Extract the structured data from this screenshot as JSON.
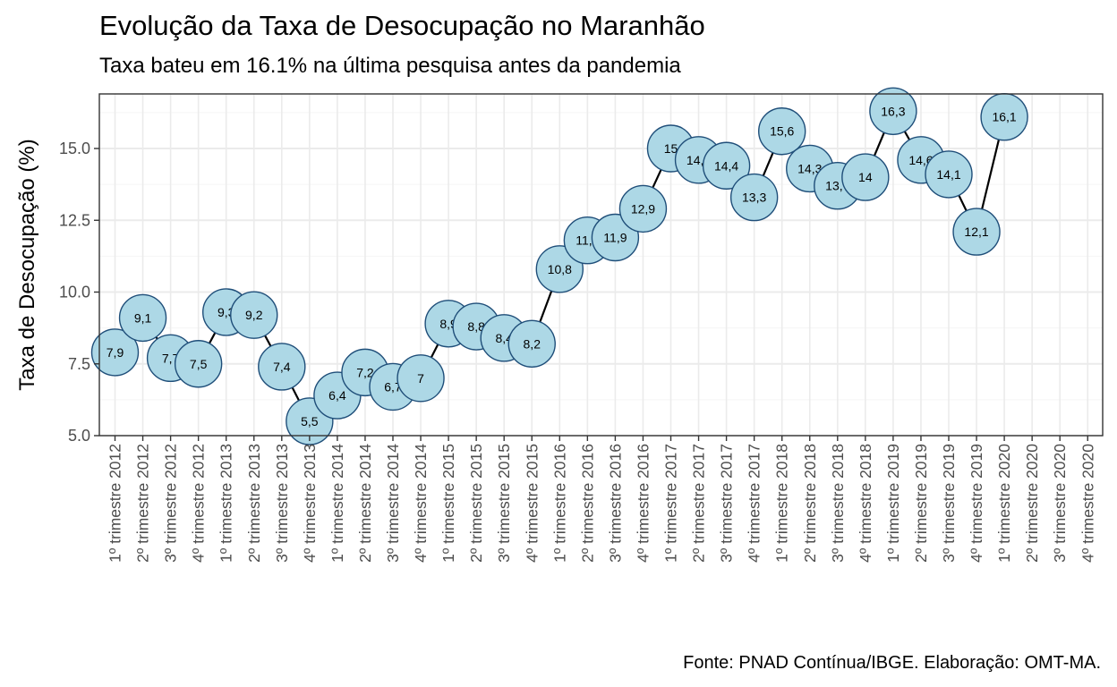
{
  "chart_data": {
    "type": "line",
    "title": "Evolução da Taxa de Desocupação no Maranhão",
    "subtitle": "Taxa bateu em 16.1% na última pesquisa antes da pandemia",
    "caption": "Fonte: PNAD Contínua/IBGE. Elaboração: OMT-MA.",
    "xlabel": "",
    "ylabel": "Taxa de Desocupação (%)",
    "ylim": [
      5.0,
      17.0
    ],
    "yticks": [
      "5.0",
      "7.5",
      "10.0",
      "12.5",
      "15.0"
    ],
    "categories": [
      "1º trimestre 2012",
      "2º trimestre 2012",
      "3º trimestre 2012",
      "4º trimestre 2012",
      "1º trimestre 2013",
      "2º trimestre 2013",
      "3º trimestre 2013",
      "4º trimestre 2013",
      "1º trimestre 2014",
      "2º trimestre 2014",
      "3º trimestre 2014",
      "4º trimestre 2014",
      "1º trimestre 2015",
      "2º trimestre 2015",
      "3º trimestre 2015",
      "4º trimestre 2015",
      "1º trimestre 2016",
      "2º trimestre 2016",
      "3º trimestre 2016",
      "4º trimestre 2016",
      "1º trimestre 2017",
      "2º trimestre 2017",
      "3º trimestre 2017",
      "4º trimestre 2017",
      "1º trimestre 2018",
      "2º trimestre 2018",
      "3º trimestre 2018",
      "4º trimestre 2018",
      "1º trimestre 2019",
      "2º trimestre 2019",
      "3º trimestre 2019",
      "4º trimestre 2019",
      "1º trimestre 2020",
      "2º trimestre 2020",
      "3º trimestre 2020",
      "4º trimestre 2020"
    ],
    "values": [
      7.9,
      9.1,
      7.7,
      7.5,
      9.3,
      9.2,
      7.4,
      5.5,
      6.4,
      7.2,
      6.7,
      7.0,
      8.9,
      8.8,
      8.4,
      8.2,
      10.8,
      11.8,
      11.9,
      12.9,
      15.0,
      14.6,
      14.4,
      13.3,
      15.6,
      14.3,
      13.7,
      14.0,
      16.3,
      14.6,
      14.1,
      12.1,
      16.1,
      null,
      null,
      null
    ],
    "data_labels": [
      "7,9",
      "9,1",
      "7,7",
      "7,5",
      "9,3",
      "9,2",
      "7,4",
      "5,5",
      "6,4",
      "7,2",
      "6,7",
      "7",
      "8,9",
      "8,8",
      "8,4",
      "8,2",
      "10,8",
      "11,8",
      "11,9",
      "12,9",
      "15",
      "14,6",
      "14,4",
      "13,3",
      "15,6",
      "14,3",
      "13,7",
      "14",
      "16,3",
      "14,6",
      "14,1",
      "12,1",
      "16,1",
      "",
      "",
      ""
    ],
    "grid": true,
    "legend": "none",
    "colors": {
      "point_fill": "#add8e6",
      "point_stroke": "#1f4e79",
      "line": "#000000",
      "grid_major": "#ebebeb",
      "grid_minor": "#f5f5f5",
      "panel_border": "#333333",
      "tick_text": "#4d4d4d"
    }
  }
}
